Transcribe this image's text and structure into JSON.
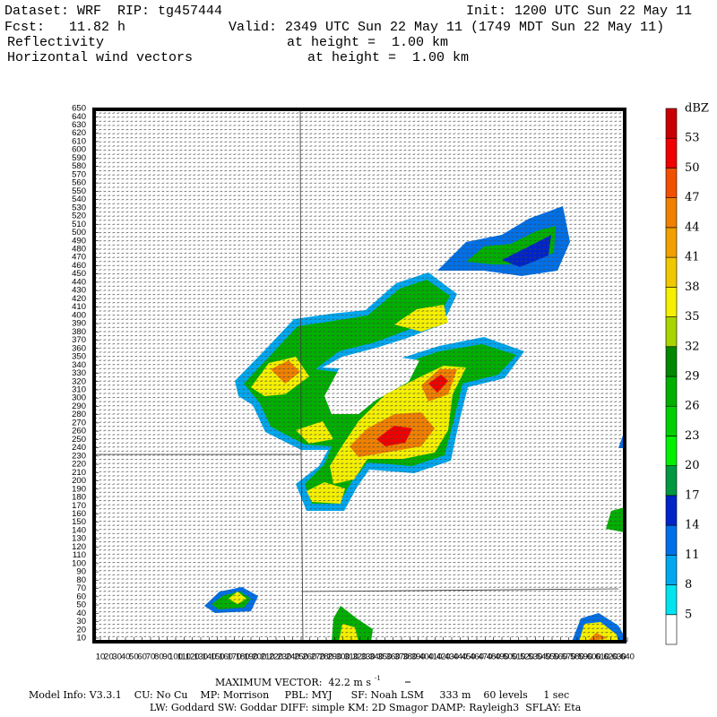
{
  "header": {
    "dataset": "Dataset: WRF  RIP: tg457444",
    "init": "Init: 1200 UTC Sun 22 May 11",
    "fcst": "Fcst:   11.82 h",
    "valid": "Valid: 2349 UTC Sun 22 May 11 (1749 MDT Sun 22 May 11)",
    "field1": "Reflectivity",
    "height1": "at height =  1.00 km",
    "field2": "Horizontal wind vectors",
    "height2": "at height =  1.00 km"
  },
  "colorbar": {
    "unit": "dBZ",
    "levels": [
      5,
      8,
      11,
      14,
      17,
      20,
      23,
      26,
      29,
      32,
      35,
      38,
      41,
      44,
      47,
      50,
      53
    ],
    "colors": [
      "#ffffff",
      "#00e4f0",
      "#00a8f0",
      "#0070e8",
      "#0024c8",
      "#009840",
      "#00f000",
      "#00d000",
      "#00b000",
      "#008800",
      "#a8d400",
      "#f4f000",
      "#f0c800",
      "#f0a000",
      "#f08000",
      "#f05000",
      "#f00000",
      "#c80000"
    ]
  },
  "axes": {
    "yticks": [
      10,
      20,
      30,
      40,
      50,
      60,
      70,
      80,
      90,
      100,
      110,
      120,
      130,
      140,
      150,
      160,
      170,
      180,
      190,
      200,
      210,
      220,
      230,
      240,
      250,
      260,
      270,
      280,
      290,
      300,
      310,
      320,
      330,
      340,
      350,
      360,
      370,
      380,
      390,
      400,
      410,
      420,
      430,
      440,
      450,
      460,
      470,
      480,
      490,
      500,
      510,
      520,
      530,
      540,
      550,
      560,
      570,
      580,
      590,
      600,
      610,
      620,
      630,
      640,
      650
    ],
    "xticks": [
      10,
      20,
      30,
      40,
      50,
      60,
      70,
      80,
      90,
      100,
      110,
      120,
      130,
      140,
      150,
      160,
      170,
      180,
      190,
      200,
      210,
      220,
      230,
      240,
      250,
      260,
      270,
      280,
      290,
      300,
      310,
      320,
      330,
      340,
      350,
      360,
      370,
      380,
      390,
      400,
      410,
      420,
      430,
      440,
      450,
      460,
      470,
      480,
      490,
      500,
      510,
      520,
      530,
      540,
      550,
      560,
      570,
      580,
      590,
      600,
      610,
      620,
      630,
      640
    ]
  },
  "footer": {
    "max_vector": "MAXIMUM VECTOR:  42.2 m s",
    "max_vector_exp": "-1",
    "model_info": "Model Info: V3.3.1    CU: No Cu    MP: Morrison     PBL: MYJ      SF: Noah LSM     333 m    60 levels     1 sec",
    "model_info2": "LW: Goddard SW: Goddar DIFF: simple KM: 2D Smagor DAMP: Rayleigh3  SFLAY: Eta"
  }
}
